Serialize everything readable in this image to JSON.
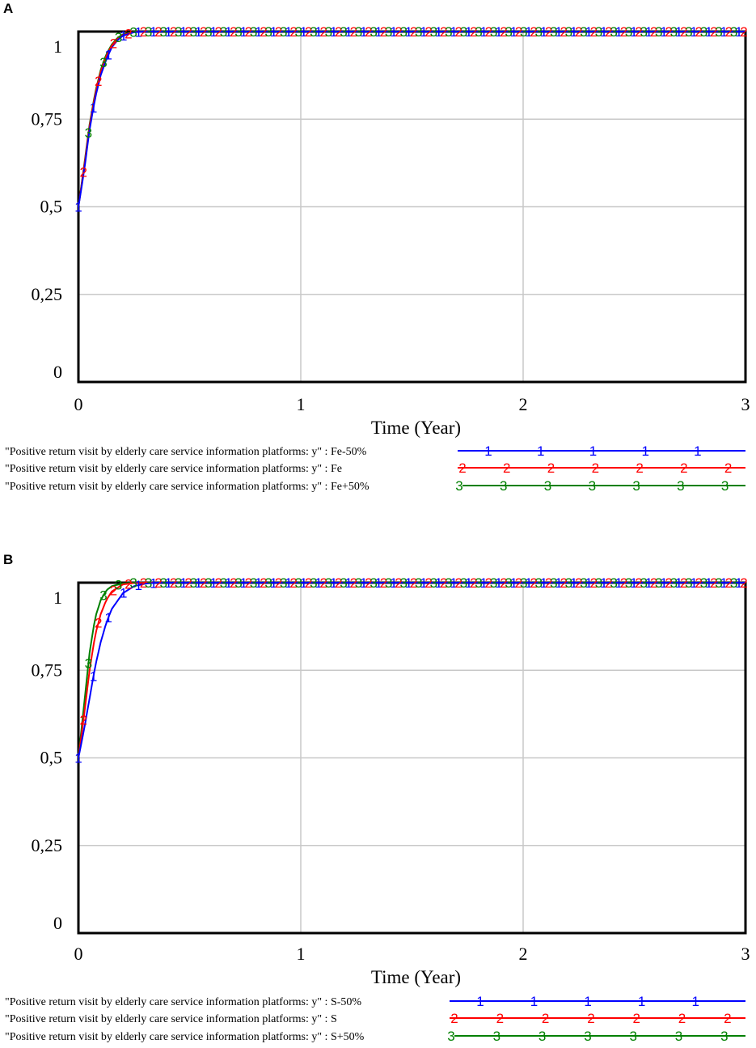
{
  "panels": [
    {
      "letter": "A",
      "chart_data": {
        "type": "line",
        "xlabel": "Time (Year)",
        "ylabel": "",
        "xlim": [
          0,
          3
        ],
        "ylim": [
          0,
          1
        ],
        "xticks": [
          "0",
          "1",
          "2",
          "3"
        ],
        "yticks": [
          "0",
          "0,25",
          "0,5",
          "0,75",
          "1"
        ],
        "grid": true,
        "legend_position": "bottom",
        "series": [
          {
            "name": "\"Positive return visit by elderly care service information platforms: y\" : Fe-50%",
            "marker": "1",
            "color": "#0000ff",
            "x": [
              0,
              0.025,
              0.05,
              0.075,
              0.1,
              0.125,
              0.15,
              0.175,
              0.2,
              0.25,
              0.3,
              0.4,
              3
            ],
            "y": [
              0.5,
              0.6,
              0.72,
              0.81,
              0.875,
              0.92,
              0.955,
              0.975,
              0.988,
              0.998,
              1.0,
              1.0,
              1.0
            ]
          },
          {
            "name": "\"Positive return visit by elderly care service information platforms: y\" : Fe",
            "marker": "2",
            "color": "#ff0000",
            "x": [
              0,
              0.025,
              0.05,
              0.075,
              0.1,
              0.125,
              0.15,
              0.175,
              0.2,
              0.25,
              0.3,
              0.4,
              3
            ],
            "y": [
              0.5,
              0.61,
              0.73,
              0.82,
              0.885,
              0.93,
              0.96,
              0.98,
              0.99,
              0.999,
              1.0,
              1.0,
              1.0
            ]
          },
          {
            "name": "\"Positive return visit by elderly care service information platforms: y\" : Fe+50%",
            "marker": "3",
            "color": "#008000",
            "x": [
              0,
              0.025,
              0.05,
              0.075,
              0.1,
              0.125,
              0.15,
              0.175,
              0.2,
              0.25,
              0.3,
              0.4,
              3
            ],
            "y": [
              0.5,
              0.615,
              0.735,
              0.825,
              0.89,
              0.935,
              0.963,
              0.982,
              0.992,
              0.999,
              1.0,
              1.0,
              1.0
            ]
          }
        ]
      }
    },
    {
      "letter": "B",
      "chart_data": {
        "type": "line",
        "xlabel": "Time (Year)",
        "ylabel": "",
        "xlim": [
          0,
          3
        ],
        "ylim": [
          0,
          1
        ],
        "xticks": [
          "0",
          "1",
          "2",
          "3"
        ],
        "yticks": [
          "0",
          "0,25",
          "0,5",
          "0,75",
          "1"
        ],
        "grid": true,
        "legend_position": "bottom",
        "series": [
          {
            "name": "\"Positive return visit by elderly care service information platforms: y\" : S-50%",
            "marker": "1",
            "color": "#0000ff",
            "x": [
              0,
              0.025,
              0.05,
              0.075,
              0.1,
              0.125,
              0.15,
              0.2,
              0.25,
              0.3,
              0.35,
              0.45,
              3
            ],
            "y": [
              0.5,
              0.58,
              0.67,
              0.76,
              0.83,
              0.885,
              0.925,
              0.97,
              0.99,
              0.997,
              1.0,
              1.0,
              1.0
            ]
          },
          {
            "name": "\"Positive return visit by elderly care service information platforms: y\" : S",
            "marker": "2",
            "color": "#ff0000",
            "x": [
              0,
              0.025,
              0.05,
              0.075,
              0.1,
              0.125,
              0.15,
              0.2,
              0.25,
              0.3,
              0.35,
              0.45,
              3
            ],
            "y": [
              0.5,
              0.62,
              0.75,
              0.85,
              0.91,
              0.95,
              0.975,
              0.995,
              0.999,
              1.0,
              1.0,
              1.0,
              1.0
            ]
          },
          {
            "name": "\"Positive return visit by elderly care service information platforms: y\" : S+50%",
            "marker": "3",
            "color": "#008000",
            "x": [
              0,
              0.025,
              0.05,
              0.075,
              0.1,
              0.125,
              0.15,
              0.2,
              0.25,
              0.3,
              0.35,
              0.45,
              3
            ],
            "y": [
              0.5,
              0.65,
              0.8,
              0.9,
              0.95,
              0.978,
              0.99,
              0.998,
              1.0,
              1.0,
              1.0,
              1.0,
              1.0
            ]
          }
        ]
      }
    }
  ]
}
